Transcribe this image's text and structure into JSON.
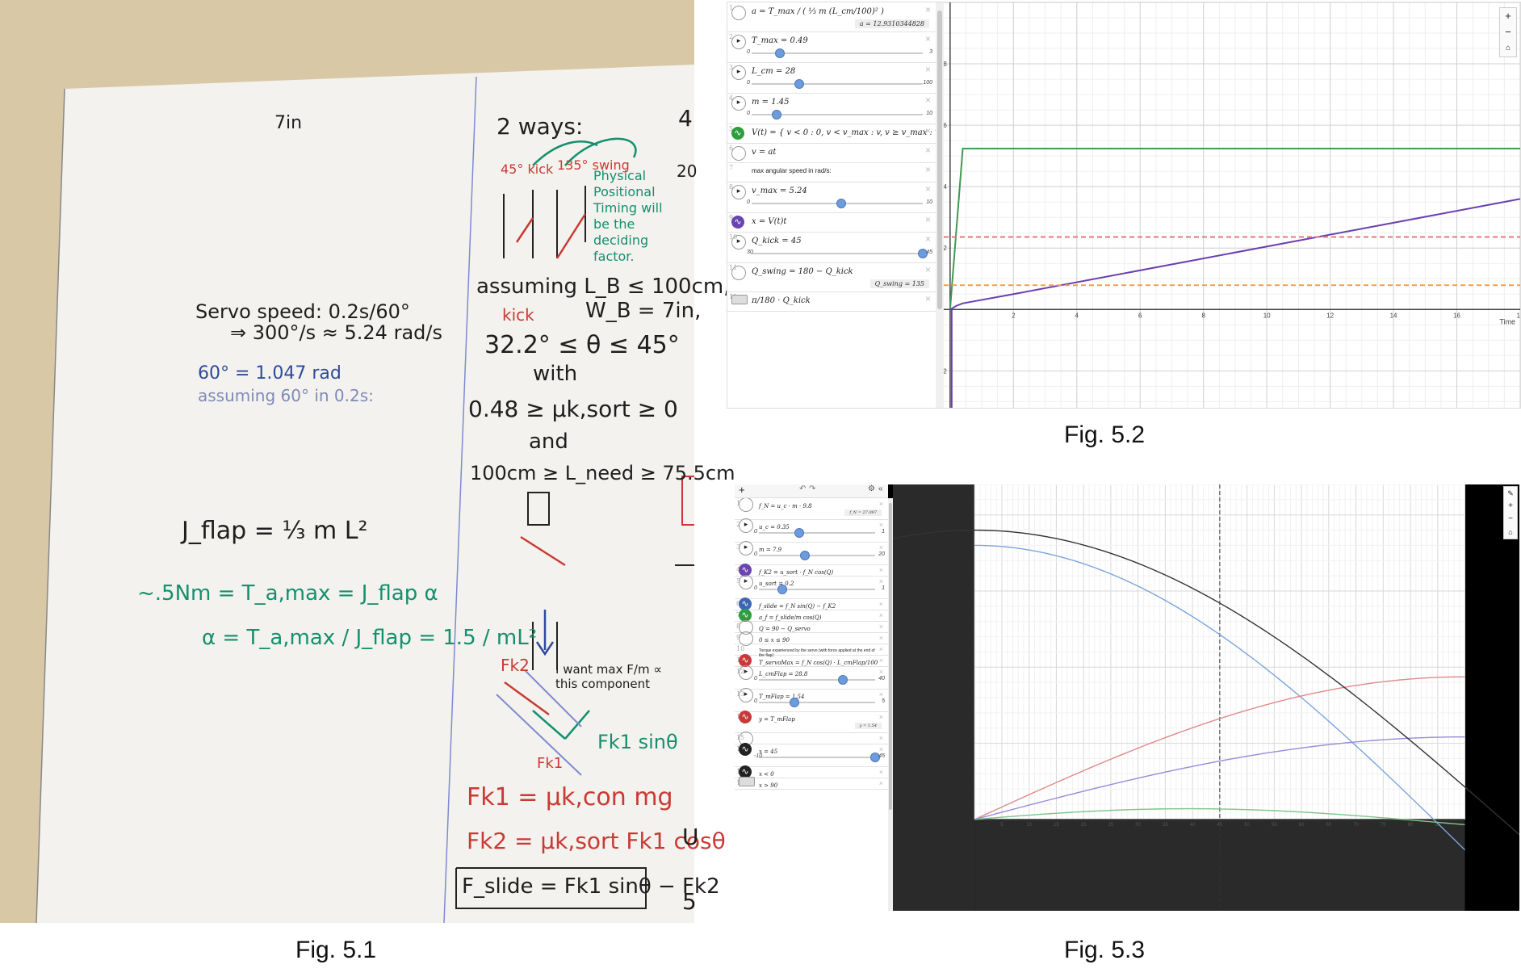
{
  "captions": {
    "fig1": "Fig. 5.1",
    "fig2": "Fig. 5.2",
    "fig3": "Fig. 5.3"
  },
  "whiteboard": {
    "width_label": "7in",
    "servo_line1": "Servo speed: 0.2s/60°",
    "servo_line2": "⇒ 300°/s ≈ 5.24 rad/s",
    "sixty": "60° = 1.047 rad",
    "assuming60": "assuming 60° in 0.2s:",
    "jflap": "J_flap = ⅓ m L²",
    "torque": "~.5Nm = T_a,max = J_flap α",
    "alpha": "α = T_a,max / J_flap = 1.5 / mL²",
    "two_ways": "2 ways:",
    "kick45": "45° kick",
    "swing135": "135° swing",
    "physical": "Physical Positional Timing will be the deciding factor.",
    "assuming": "assuming L_B ≤ 100cm,",
    "wb": "W_B = 7in,",
    "kick_lbl": "kick",
    "theta_range": "32.2° ≤ θ ≤ 45°",
    "with": "with",
    "mu": "0.48 ≥ μk,sort ≥ 0",
    "and": "and",
    "lneed": "100cm ≥ L_need ≥ 75.5cm",
    "want": "I want max F/m ∝ this component",
    "fk2": "Fk2",
    "fk1": "Fk1",
    "fk1_sin": "Fk1 sinθ",
    "eq1": "Fk1 = μk,con mg",
    "eq2": "Fk2 = μk,sort Fk1 cosθ",
    "eq3": "F_slide = Fk1 sinθ − Fk2",
    "edge1": "4",
    "edge2": "20",
    "edge3": "U",
    "edge4": "5"
  },
  "fig2": {
    "expressions": [
      {
        "n": "1",
        "icon": "none",
        "text": "a = T_max / ( ⅓ m (L_cm/100)² )",
        "eval": "a = 12.9310344828"
      },
      {
        "n": "2",
        "icon": "play",
        "text": "T_max = 0.49",
        "slider": {
          "min": "0",
          "max": "3",
          "value": 0.49
        }
      },
      {
        "n": "3",
        "icon": "play",
        "text": "L_cm = 28",
        "slider": {
          "min": "0",
          "max": "100",
          "value": 28
        }
      },
      {
        "n": "4",
        "icon": "play",
        "text": "m = 1.45",
        "slider": {
          "min": "0",
          "max": "10",
          "value": 1.45
        }
      },
      {
        "n": "5",
        "icon": "wave-g",
        "text": "V(t) = { v < 0 : 0, v < v_max : v, v ≥ v_max : v_max }"
      },
      {
        "n": "6",
        "icon": "none",
        "text": "v = at"
      },
      {
        "n": "7",
        "icon": "note",
        "text": "max angular speed in rad/s:"
      },
      {
        "n": "8",
        "icon": "play",
        "text": "v_max = 5.24",
        "slider": {
          "min": "0",
          "max": "10",
          "value": 5.24
        }
      },
      {
        "n": "9",
        "icon": "wave-p",
        "text": "x = V(t)t"
      },
      {
        "n": "10",
        "icon": "play",
        "text": "Q_kick = 45",
        "slider": {
          "min": "30",
          "max": "45",
          "value": 45
        }
      },
      {
        "n": "11",
        "icon": "none",
        "text": "Q_swing = 180 − Q_kick",
        "eval": "Q_swing = 135"
      },
      {
        "n": "12",
        "icon": "kbd",
        "text": "π/180 · Q_kick"
      }
    ],
    "axis_x_label": "Time",
    "chart_data": {
      "type": "line",
      "xlim": [
        -0.2,
        18
      ],
      "ylim": [
        -3.2,
        10
      ],
      "x_ticks": [
        2,
        4,
        6,
        8,
        10,
        12,
        14,
        16,
        18
      ],
      "y_ticks": [
        -2,
        2,
        4,
        6,
        8
      ],
      "series": [
        {
          "color": "#3f9a52",
          "dash": false,
          "points": [
            [
              0,
              0
            ],
            [
              0.4,
              5.24
            ],
            [
              18,
              5.24
            ]
          ]
        },
        {
          "color": "#6a3fb0",
          "dash": false,
          "points": [
            [
              0,
              0
            ],
            [
              0.2,
              0.12
            ],
            [
              0.4,
              0.2
            ],
            [
              2,
              0.5
            ],
            [
              18,
              3.6
            ]
          ]
        },
        {
          "color": "#e07a7a",
          "dash": true,
          "points": [
            [
              -0.2,
              2.36
            ],
            [
              18,
              2.36
            ]
          ]
        },
        {
          "color": "#f0a046",
          "dash": true,
          "points": [
            [
              -0.2,
              0.79
            ],
            [
              18,
              0.79
            ]
          ]
        }
      ]
    }
  },
  "fig3": {
    "expressions": [
      {
        "n": "1",
        "icon": "none",
        "text": "f_N = u_c · m · 9.8",
        "eval": "f_N = 27.097"
      },
      {
        "n": "2",
        "icon": "play",
        "text": "u_c = 0.35",
        "slider": {
          "min": "0",
          "max": "1",
          "value": 0.35
        }
      },
      {
        "n": "3",
        "icon": "play",
        "text": "m = 7.9",
        "slider": {
          "min": "0",
          "max": "20",
          "value": 7.9
        }
      },
      {
        "n": "4",
        "icon": "wave-p",
        "text": "f_K2 = u_sort · f_N cos(Q)"
      },
      {
        "n": "5",
        "icon": "play",
        "text": "u_sort = 0.2",
        "slider": {
          "min": "0",
          "max": "1",
          "value": 0.2
        }
      },
      {
        "n": "6",
        "icon": "wave-b",
        "text": "f_slide = f_N sin(Q) − f_K2"
      },
      {
        "n": "7",
        "icon": "wave-g",
        "text": "a_f = f_slide/m cos(Q)"
      },
      {
        "n": "8",
        "icon": "none",
        "text": "Q = 90 − Q_servo"
      },
      {
        "n": "9",
        "icon": "none",
        "text": "0 ≤ x ≤ 90"
      },
      {
        "n": "10",
        "icon": "note",
        "text": "Torque experienced by the servo (with force applied at the end of the flap)"
      },
      {
        "n": "11",
        "icon": "wave-r",
        "text": "T_servoMax = f_N cos(Q) · L_cmFlap/100"
      },
      {
        "n": "12",
        "icon": "play",
        "text": "L_cmFlap = 28.8",
        "slider": {
          "min": "0",
          "max": "40",
          "value": 28.8
        }
      },
      {
        "n": "13",
        "icon": "play",
        "text": "T_mFlap = 1.54",
        "slider": {
          "min": "0",
          "max": "5",
          "value": 1.54
        }
      },
      {
        "n": "14",
        "icon": "wave-r",
        "text": "y = T_mFlap",
        "eval": "y = 1.54"
      },
      {
        "n": "15",
        "icon": "none",
        "text": ""
      },
      {
        "n": "16",
        "icon": "wave-k",
        "text": "x = 45",
        "slider": {
          "min": "-10",
          "max": "45",
          "value": 45
        }
      },
      {
        "n": "17",
        "icon": "wave-k",
        "text": "x < 0"
      },
      {
        "n": "18",
        "icon": "kbd",
        "text": "x > 90"
      }
    ],
    "chart_data": {
      "type": "line",
      "xlim": [
        -15,
        100
      ],
      "ylim": [
        -6,
        22
      ],
      "x_ticks": [
        5,
        10,
        15,
        20,
        25,
        30,
        35,
        40,
        45,
        50,
        55,
        60,
        65,
        70,
        75,
        80,
        85
      ],
      "series": [
        {
          "color": "#7aa5dc",
          "func": "blue"
        },
        {
          "color": "#e08a8a",
          "func": "red"
        },
        {
          "color": "#9a8ad8",
          "func": "purple"
        },
        {
          "color": "#7cc48a",
          "func": "green"
        },
        {
          "color": "#333333",
          "func": "black"
        }
      ]
    }
  }
}
